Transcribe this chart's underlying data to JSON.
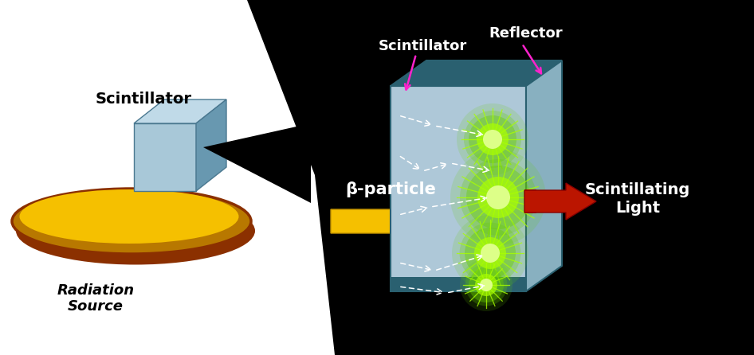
{
  "bg_left_color": "#ffffff",
  "bg_right_color": "#000000",
  "ellipse_outer_color": "#b87800",
  "ellipse_inner_color": "#f5c000",
  "ellipse_edge_color": "#8b3000",
  "cube_front_color": "#a8c8d8",
  "cube_top_color": "#c0dae8",
  "cube_side_color": "#6898b0",
  "scint_box_face_color": "#aec8d8",
  "scint_box_top_color": "#2a6070",
  "scint_box_right_color": "#88b0c0",
  "scint_box_bottom_color": "#2a6070",
  "arrow_yellow_color": "#f5c000",
  "arrow_red_color": "#bb1500",
  "glow_outer": "#66cc00",
  "glow_inner": "#aaff00",
  "glow_core": "#ddff88",
  "magenta_color": "#ff22cc",
  "white_color": "#ffffff",
  "label_scintillator_left": "Scintillator",
  "label_radiation": "Radiation\nSource",
  "label_beta": "β-particle",
  "label_scintillator_right": "Scintillator",
  "label_reflector": "Reflector",
  "label_scint_light": "Scintillating\nLight",
  "figw": 9.46,
  "figh": 4.46,
  "dpi": 100
}
